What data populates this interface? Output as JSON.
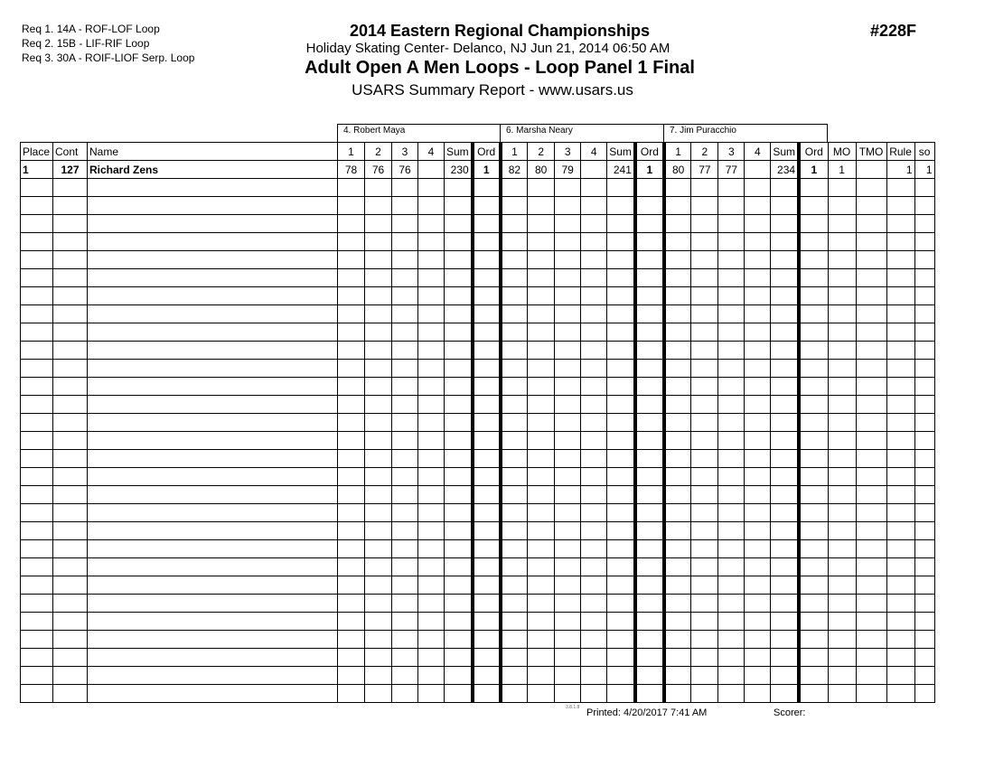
{
  "requirements": [
    "Req  1.  14A - ROF-LOF Loop",
    "Req  2.  15B - LIF-RIF Loop",
    "Req  3.  30A - ROIF-LIOF Serp. Loop"
  ],
  "header": {
    "title": "2014 Eastern Regional Championships",
    "venue": "Holiday Skating Center- Delanco, NJ  Jun 21, 2014  06:50 AM",
    "event": "Adult Open A Men Loops - Loop Panel 1 Final",
    "report": "USARS Summary Report - www.usars.us",
    "event_number": "#228F"
  },
  "judges": [
    "4.  Robert Maya",
    "6.  Marsha Neary",
    "7.  Jim Puracchio"
  ],
  "columns": {
    "place": "Place",
    "cont": "Cont",
    "name": "Name",
    "judge_cols": [
      "1",
      "2",
      "3",
      "4",
      "Sum",
      "Ord"
    ],
    "mo": "MO",
    "tmo": "TMO",
    "rule": "Rule",
    "so": "so"
  },
  "rows": [
    {
      "place": "1",
      "cont": "127",
      "name": "Richard Zens",
      "judges": [
        {
          "scores": [
            "78",
            "76",
            "76",
            ""
          ],
          "sum": "230",
          "ord": "1"
        },
        {
          "scores": [
            "82",
            "80",
            "79",
            ""
          ],
          "sum": "241",
          "ord": "1"
        },
        {
          "scores": [
            "80",
            "77",
            "77",
            ""
          ],
          "sum": "234",
          "ord": "1"
        }
      ],
      "mo": "1",
      "tmo": "",
      "rule": "1",
      "so": "1"
    }
  ],
  "footer": {
    "version": "3.8.1.8",
    "printed": "Printed:  4/20/2017  7:41 AM",
    "scorer": "Scorer:"
  }
}
